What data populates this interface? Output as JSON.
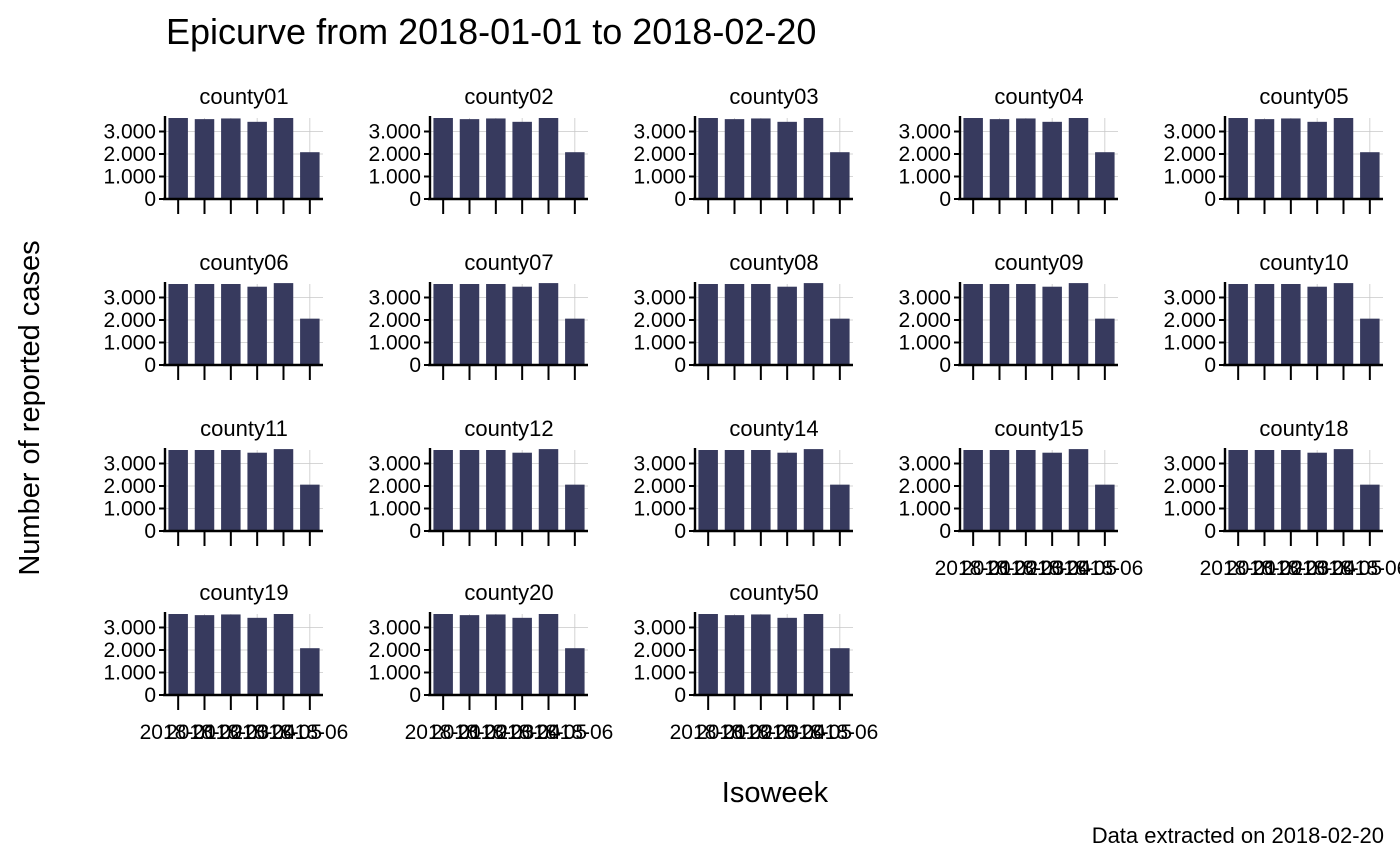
{
  "chart_data": {
    "type": "bar",
    "title": "Epicurve from 2018-01-01 to 2018-02-20",
    "xlabel": "Isoweek",
    "ylabel": "Number of reported cases",
    "caption": "Data extracted on 2018-02-20",
    "categories": [
      "2018-01",
      "2018-02",
      "2018-03",
      "2018-04",
      "2018-05",
      "2018-06"
    ],
    "y_ticks": [
      0,
      1000,
      2000,
      3000
    ],
    "y_tick_labels": [
      "0",
      "1.000",
      "2.000",
      "3.000"
    ],
    "ylim": [
      0,
      3600
    ],
    "bar_color": "#373a5e",
    "grid": true,
    "panels": [
      {
        "name": "county01",
        "values": [
          3600,
          3550,
          3580,
          3430,
          3600,
          2080
        ]
      },
      {
        "name": "county02",
        "values": [
          3600,
          3550,
          3580,
          3430,
          3600,
          2080
        ]
      },
      {
        "name": "county03",
        "values": [
          3600,
          3550,
          3580,
          3430,
          3600,
          2080
        ]
      },
      {
        "name": "county04",
        "values": [
          3600,
          3550,
          3580,
          3430,
          3600,
          2080
        ]
      },
      {
        "name": "county05",
        "values": [
          3600,
          3550,
          3580,
          3430,
          3600,
          2080
        ]
      },
      {
        "name": "county06",
        "values": [
          3600,
          3600,
          3600,
          3480,
          3640,
          2060
        ]
      },
      {
        "name": "county07",
        "values": [
          3600,
          3600,
          3600,
          3480,
          3640,
          2060
        ]
      },
      {
        "name": "county08",
        "values": [
          3600,
          3600,
          3600,
          3480,
          3640,
          2060
        ]
      },
      {
        "name": "county09",
        "values": [
          3600,
          3600,
          3600,
          3480,
          3640,
          2060
        ]
      },
      {
        "name": "county10",
        "values": [
          3600,
          3600,
          3600,
          3480,
          3640,
          2060
        ]
      },
      {
        "name": "county11",
        "values": [
          3600,
          3600,
          3600,
          3480,
          3640,
          2060
        ]
      },
      {
        "name": "county12",
        "values": [
          3600,
          3600,
          3600,
          3480,
          3640,
          2060
        ]
      },
      {
        "name": "county14",
        "values": [
          3600,
          3600,
          3600,
          3480,
          3640,
          2060
        ]
      },
      {
        "name": "county15",
        "values": [
          3600,
          3600,
          3600,
          3480,
          3640,
          2060
        ]
      },
      {
        "name": "county18",
        "values": [
          3600,
          3600,
          3600,
          3480,
          3640,
          2060
        ]
      },
      {
        "name": "county19",
        "values": [
          3600,
          3550,
          3580,
          3430,
          3600,
          2080
        ]
      },
      {
        "name": "county20",
        "values": [
          3600,
          3550,
          3580,
          3430,
          3600,
          2080
        ]
      },
      {
        "name": "county50",
        "values": [
          3600,
          3550,
          3580,
          3430,
          3600,
          2080
        ]
      }
    ]
  }
}
